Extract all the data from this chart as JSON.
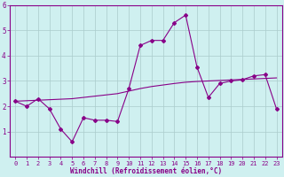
{
  "xlabel": "Windchill (Refroidissement éolien,°C)",
  "background_color": "#cff0f0",
  "line_color": "#880088",
  "grid_color": "#aacccc",
  "x_data": [
    0,
    1,
    2,
    3,
    4,
    5,
    6,
    7,
    8,
    9,
    10,
    11,
    12,
    13,
    14,
    15,
    16,
    17,
    18,
    19,
    20,
    21,
    22,
    23
  ],
  "y_main": [
    2.2,
    2.0,
    2.3,
    1.9,
    1.1,
    0.6,
    1.55,
    1.45,
    1.45,
    1.4,
    2.7,
    4.4,
    4.6,
    4.6,
    5.3,
    5.6,
    3.55,
    2.35,
    2.9,
    3.0,
    3.05,
    3.2,
    3.25,
    1.9
  ],
  "y_trend": [
    2.2,
    2.22,
    2.24,
    2.26,
    2.28,
    2.3,
    2.35,
    2.4,
    2.45,
    2.5,
    2.6,
    2.7,
    2.78,
    2.84,
    2.9,
    2.95,
    2.98,
    3.0,
    3.02,
    3.04,
    3.06,
    3.08,
    3.1,
    3.12
  ],
  "ylim": [
    0,
    6
  ],
  "xlim": [
    -0.5,
    23.5
  ],
  "yticks": [
    1,
    2,
    3,
    4,
    5,
    6
  ],
  "xticks": [
    0,
    1,
    2,
    3,
    4,
    5,
    6,
    7,
    8,
    9,
    10,
    11,
    12,
    13,
    14,
    15,
    16,
    17,
    18,
    19,
    20,
    21,
    22,
    23
  ],
  "tick_fontsize": 5,
  "label_fontsize": 5.5
}
